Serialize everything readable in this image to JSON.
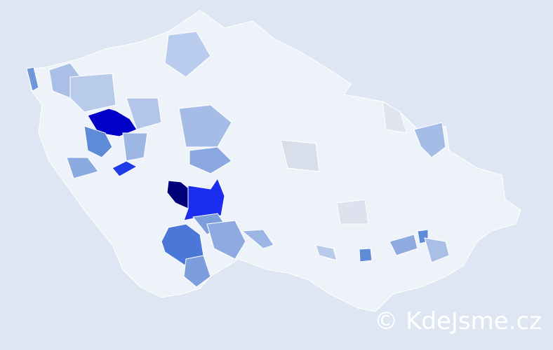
{
  "watermark": "© KdeJsme.cz"
}
